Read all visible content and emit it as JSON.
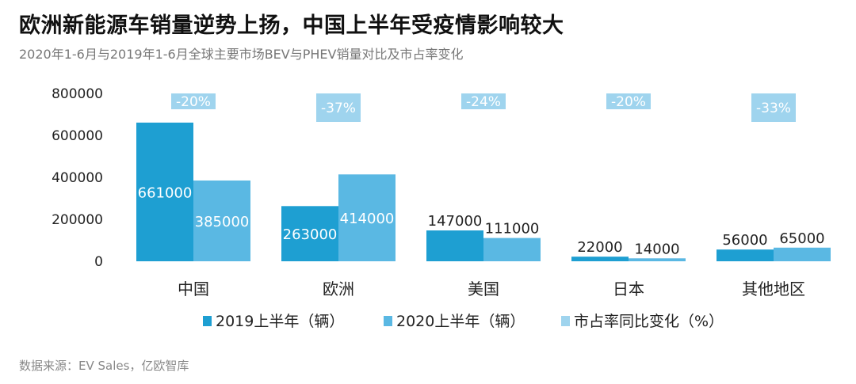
{
  "title": "欧洲新能源车销量逆势上扬，中国上半年受疫情影响较大",
  "subtitle": "2020年1-6月与2019年1-6月全球主要市场BEV与PHEV销量对比及市占率变化",
  "source": "数据来源：EV Sales，亿欧智库",
  "colors": {
    "series_2019": "#1e9fd2",
    "series_2020": "#5ab8e3",
    "pct_box": "#9fd4ee"
  },
  "chart_data": {
    "type": "bar",
    "categories": [
      "中国",
      "欧洲",
      "美国",
      "日本",
      "其他地区"
    ],
    "series": [
      {
        "name": "2019上半年（辆）",
        "values": [
          661000,
          263000,
          147000,
          22000,
          56000
        ]
      },
      {
        "name": "2020上半年（辆）",
        "values": [
          385000,
          414000,
          111000,
          14000,
          65000
        ]
      }
    ],
    "share_change": {
      "name": "市占率同比变化（%）",
      "labels": [
        "-20%",
        "-37%",
        "-24%",
        "-20%",
        "-33%"
      ]
    },
    "y_ticks": [
      "800000",
      "600000",
      "400000",
      "200000",
      "0"
    ],
    "ylim": [
      0,
      800000
    ],
    "legend_position": "bottom",
    "grid": false
  }
}
